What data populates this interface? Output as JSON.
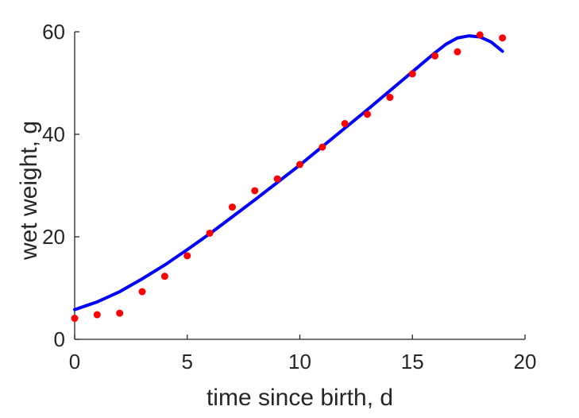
{
  "chart_data": {
    "type": "scatter",
    "xlabel": "time since birth, d",
    "ylabel": "wet weight, g",
    "xlim": [
      0,
      20
    ],
    "ylim": [
      0,
      60
    ],
    "xticks": [
      0,
      5,
      10,
      15,
      20
    ],
    "yticks": [
      0,
      20,
      40,
      60
    ],
    "grid": false,
    "colors": {
      "points": "#ff0000",
      "fit": "#0000ff",
      "axis": "#262626"
    },
    "series": [
      {
        "kind": "points",
        "x": [
          0,
          1,
          2,
          3,
          4,
          5,
          6,
          7,
          8,
          9,
          10,
          11,
          12,
          13,
          14,
          15,
          16,
          17,
          18,
          19
        ],
        "y": [
          4.1,
          4.8,
          5.1,
          9.3,
          12.3,
          16.3,
          20.7,
          25.8,
          29.0,
          31.3,
          34.1,
          37.5,
          42.1,
          43.9,
          47.2,
          51.8,
          55.3,
          56.1,
          59.4,
          58.8
        ]
      },
      {
        "kind": "line",
        "x": [
          0,
          1,
          2,
          3,
          4,
          5,
          6,
          7,
          8,
          9,
          10,
          11,
          12,
          13,
          14,
          15,
          16,
          16.5,
          17,
          17.5,
          18,
          18.5,
          19
        ],
        "y": [
          5.8,
          7.3,
          9.3,
          11.8,
          14.5,
          17.5,
          20.6,
          23.9,
          27.2,
          30.6,
          34.0,
          37.6,
          41.2,
          44.8,
          48.5,
          52.2,
          55.9,
          57.6,
          58.8,
          59.2,
          59.0,
          58.0,
          56.2
        ]
      }
    ]
  }
}
